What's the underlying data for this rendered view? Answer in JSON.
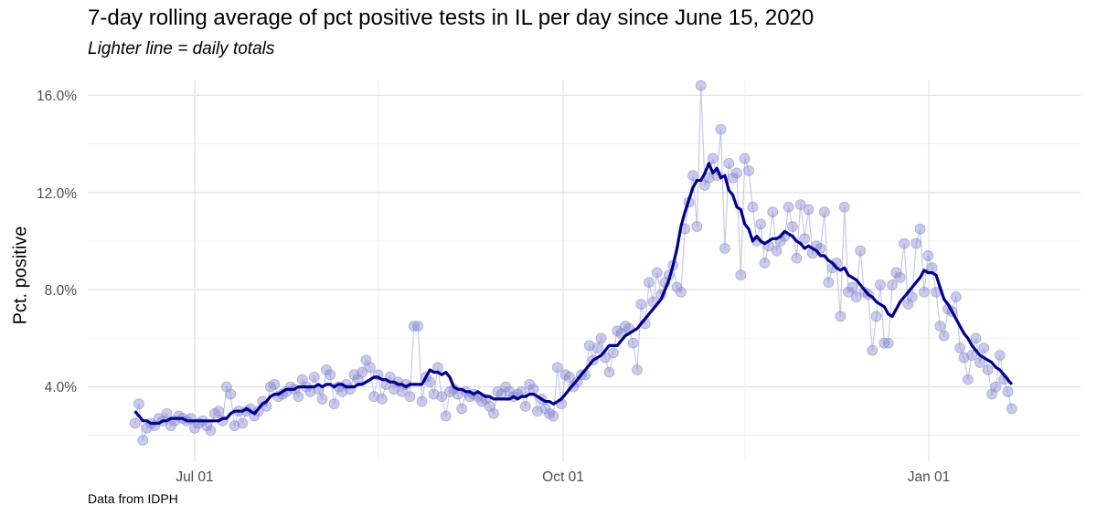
{
  "chart_data": {
    "type": "line",
    "title": "7-day rolling average of pct positive tests in IL per day since June 15, 2020",
    "subtitle": "Lighter line = daily totals",
    "xlabel": "",
    "ylabel": "Pct. positive",
    "caption": "Data from IDPH",
    "x_ticks": [
      "Jul 01",
      "Oct 01",
      "Jan 01"
    ],
    "y_ticks": [
      "4.0%",
      "8.0%",
      "12.0%",
      "16.0%"
    ],
    "ylim": [
      1.0,
      17.0
    ],
    "grid": true,
    "legend": null,
    "colors": {
      "rolling": "#00008B",
      "daily": "#8A8AD0"
    },
    "start_day_offset_from_jul01": -15,
    "series": [
      {
        "name": "daily totals",
        "values": [
          2.5,
          3.3,
          1.8,
          2.3,
          2.5,
          2.4,
          2.7,
          2.6,
          2.9,
          2.4,
          2.6,
          2.8,
          2.7,
          2.6,
          2.7,
          2.3,
          2.5,
          2.6,
          2.4,
          2.2,
          2.9,
          3.0,
          2.6,
          4.0,
          3.7,
          2.4,
          3.0,
          2.5,
          3.0,
          3.1,
          2.8,
          3.0,
          3.4,
          3.2,
          4.0,
          4.1,
          3.6,
          3.7,
          3.8,
          4.0,
          3.9,
          3.6,
          4.3,
          4.0,
          3.8,
          4.4,
          3.9,
          3.5,
          4.7,
          4.5,
          3.3,
          4.0,
          3.8,
          4.1,
          3.9,
          4.5,
          4.3,
          4.6,
          5.1,
          4.8,
          3.6,
          4.5,
          3.5,
          4.1,
          4.4,
          3.9,
          4.2,
          3.8,
          4.1,
          3.6,
          6.5,
          6.5,
          3.4,
          4.4,
          4.2,
          3.7,
          4.8,
          3.6,
          2.8,
          3.8,
          3.9,
          3.7,
          3.1,
          3.8,
          3.6,
          3.7,
          3.6,
          3.4,
          3.5,
          3.2,
          2.9,
          3.8,
          3.7,
          4.0,
          3.8,
          3.6,
          3.7,
          3.8,
          3.2,
          4.1,
          3.9,
          3.0,
          3.5,
          3.1,
          2.9,
          2.8,
          4.8,
          3.3,
          4.5,
          4.4,
          4.0,
          4.2,
          4.5,
          4.5,
          5.7,
          5.1,
          5.6,
          6.0,
          5.2,
          4.6,
          5.4,
          6.3,
          6.2,
          6.5,
          6.4,
          5.8,
          4.7,
          7.4,
          6.6,
          8.3,
          7.5,
          8.7,
          7.8,
          8.3,
          8.6,
          9.0,
          8.1,
          7.9,
          10.5,
          11.6,
          12.7,
          10.6,
          16.4,
          12.3,
          12.6,
          13.4,
          12.7,
          14.6,
          9.7,
          13.2,
          12.6,
          12.8,
          8.6,
          13.4,
          12.9,
          11.4,
          10.0,
          10.7,
          9.1,
          9.8,
          11.2,
          9.6,
          10.0,
          10.2,
          11.4,
          10.6,
          9.3,
          11.5,
          10.1,
          11.3,
          9.5,
          9.8,
          9.7,
          11.2,
          8.3,
          8.9,
          9.1,
          6.9,
          11.4,
          7.9,
          8.1,
          7.7,
          9.6,
          7.9,
          7.8,
          5.5,
          6.9,
          8.2,
          5.8,
          5.8,
          8.2,
          8.7,
          8.5,
          9.9,
          7.4,
          7.7,
          9.9,
          10.5,
          7.9,
          9.4,
          8.9,
          7.9,
          6.5,
          6.1,
          7.2,
          7.1,
          7.7,
          5.6,
          5.2,
          4.3,
          5.3,
          6.0,
          5.0,
          5.6,
          4.7,
          3.7,
          4.0,
          5.3,
          4.3,
          3.8,
          3.1
        ]
      },
      {
        "name": "7-day rolling average",
        "values": [
          3.0,
          2.8,
          2.6,
          2.6,
          2.5,
          2.5,
          2.5,
          2.6,
          2.6,
          2.7,
          2.7,
          2.7,
          2.7,
          2.6,
          2.6,
          2.6,
          2.6,
          2.6,
          2.6,
          2.6,
          2.6,
          2.6,
          2.7,
          2.7,
          2.9,
          3.0,
          3.0,
          3.0,
          3.1,
          3.0,
          2.9,
          3.1,
          3.3,
          3.4,
          3.6,
          3.7,
          3.7,
          3.8,
          3.9,
          3.9,
          3.9,
          4.0,
          4.0,
          4.0,
          4.0,
          4.0,
          4.1,
          4.0,
          4.1,
          4.1,
          4.0,
          4.1,
          4.1,
          4.0,
          4.0,
          4.0,
          4.1,
          4.1,
          4.2,
          4.3,
          4.4,
          4.4,
          4.3,
          4.3,
          4.2,
          4.2,
          4.1,
          4.1,
          4.0,
          4.1,
          4.1,
          4.1,
          4.1,
          4.4,
          4.7,
          4.6,
          4.6,
          4.5,
          4.6,
          4.4,
          4.0,
          3.9,
          3.9,
          3.8,
          3.8,
          3.7,
          3.8,
          3.7,
          3.6,
          3.6,
          3.5,
          3.5,
          3.5,
          3.5,
          3.5,
          3.6,
          3.5,
          3.6,
          3.6,
          3.7,
          3.7,
          3.6,
          3.5,
          3.4,
          3.4,
          3.3,
          3.4,
          3.5,
          3.7,
          3.9,
          4.1,
          4.3,
          4.5,
          4.7,
          4.9,
          5.1,
          5.2,
          5.3,
          5.5,
          5.7,
          5.7,
          5.7,
          5.9,
          6.1,
          6.2,
          6.3,
          6.4,
          6.6,
          6.8,
          7.0,
          7.2,
          7.4,
          7.6,
          8.0,
          8.4,
          9.0,
          9.7,
          10.6,
          11.2,
          11.7,
          12.2,
          12.5,
          12.5,
          12.8,
          13.2,
          12.8,
          13.0,
          12.6,
          12.7,
          12.1,
          11.9,
          11.4,
          11.3,
          10.7,
          10.5,
          10.0,
          10.2,
          10.0,
          9.9,
          10.0,
          10.1,
          10.1,
          10.2,
          10.4,
          10.3,
          10.2,
          10.0,
          9.9,
          9.7,
          9.8,
          9.7,
          9.6,
          9.4,
          9.4,
          9.2,
          9.1,
          8.9,
          8.8,
          8.9,
          8.6,
          8.5,
          8.4,
          8.2,
          8.0,
          7.8,
          7.7,
          7.5,
          7.4,
          7.3,
          7.0,
          6.9,
          7.2,
          7.5,
          7.7,
          7.9,
          8.1,
          8.3,
          8.5,
          8.8,
          8.7,
          8.7,
          8.6,
          8.1,
          7.6,
          7.4,
          7.1,
          6.8,
          6.5,
          6.2,
          6.0,
          5.7,
          5.5,
          5.3,
          5.2,
          5.1,
          5.0,
          4.8,
          4.7,
          4.5,
          4.3,
          4.1
        ]
      }
    ]
  }
}
